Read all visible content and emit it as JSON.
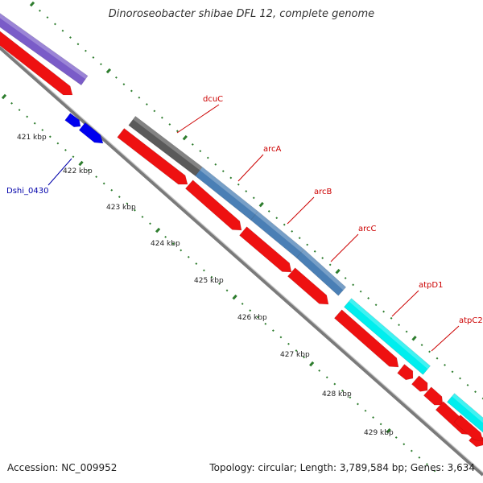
{
  "title": "Dinoroseobacter shibae DFL 12, complete genome",
  "footer": {
    "accession": "Accession: NC_009952",
    "summary": "Topology: circular; Length: 3,789,584 bp; Genes: 3,634"
  },
  "colors": {
    "backbone": "#8a8a8a",
    "tick": "#2e7d2e",
    "cds_track": "#ee1111",
    "dcuC": "#5a5a5a",
    "arc": "#4a7fb5",
    "atp": "#00eeee",
    "purple": "#7a5cc8",
    "blue": "#0000ee",
    "label_red": "#cc0000",
    "label_blue": "#0000aa"
  },
  "scale": {
    "unit": "kbp",
    "labels": [
      "421 kbp",
      "422 kbp",
      "423 kbp",
      "424 kbp",
      "425 kbp",
      "426 kbp",
      "427 kbp",
      "428 kbp",
      "429 kbp"
    ]
  },
  "genes": [
    {
      "name": "dcuC",
      "color": "dcuC"
    },
    {
      "name": "arcA",
      "color": "arc"
    },
    {
      "name": "arcB",
      "color": "arc"
    },
    {
      "name": "arcC",
      "color": "arc"
    },
    {
      "name": "atpD1",
      "color": "atp"
    },
    {
      "name": "atpC2",
      "color": "atp"
    },
    {
      "name": "Dshi_0430",
      "color": "blue"
    }
  ]
}
